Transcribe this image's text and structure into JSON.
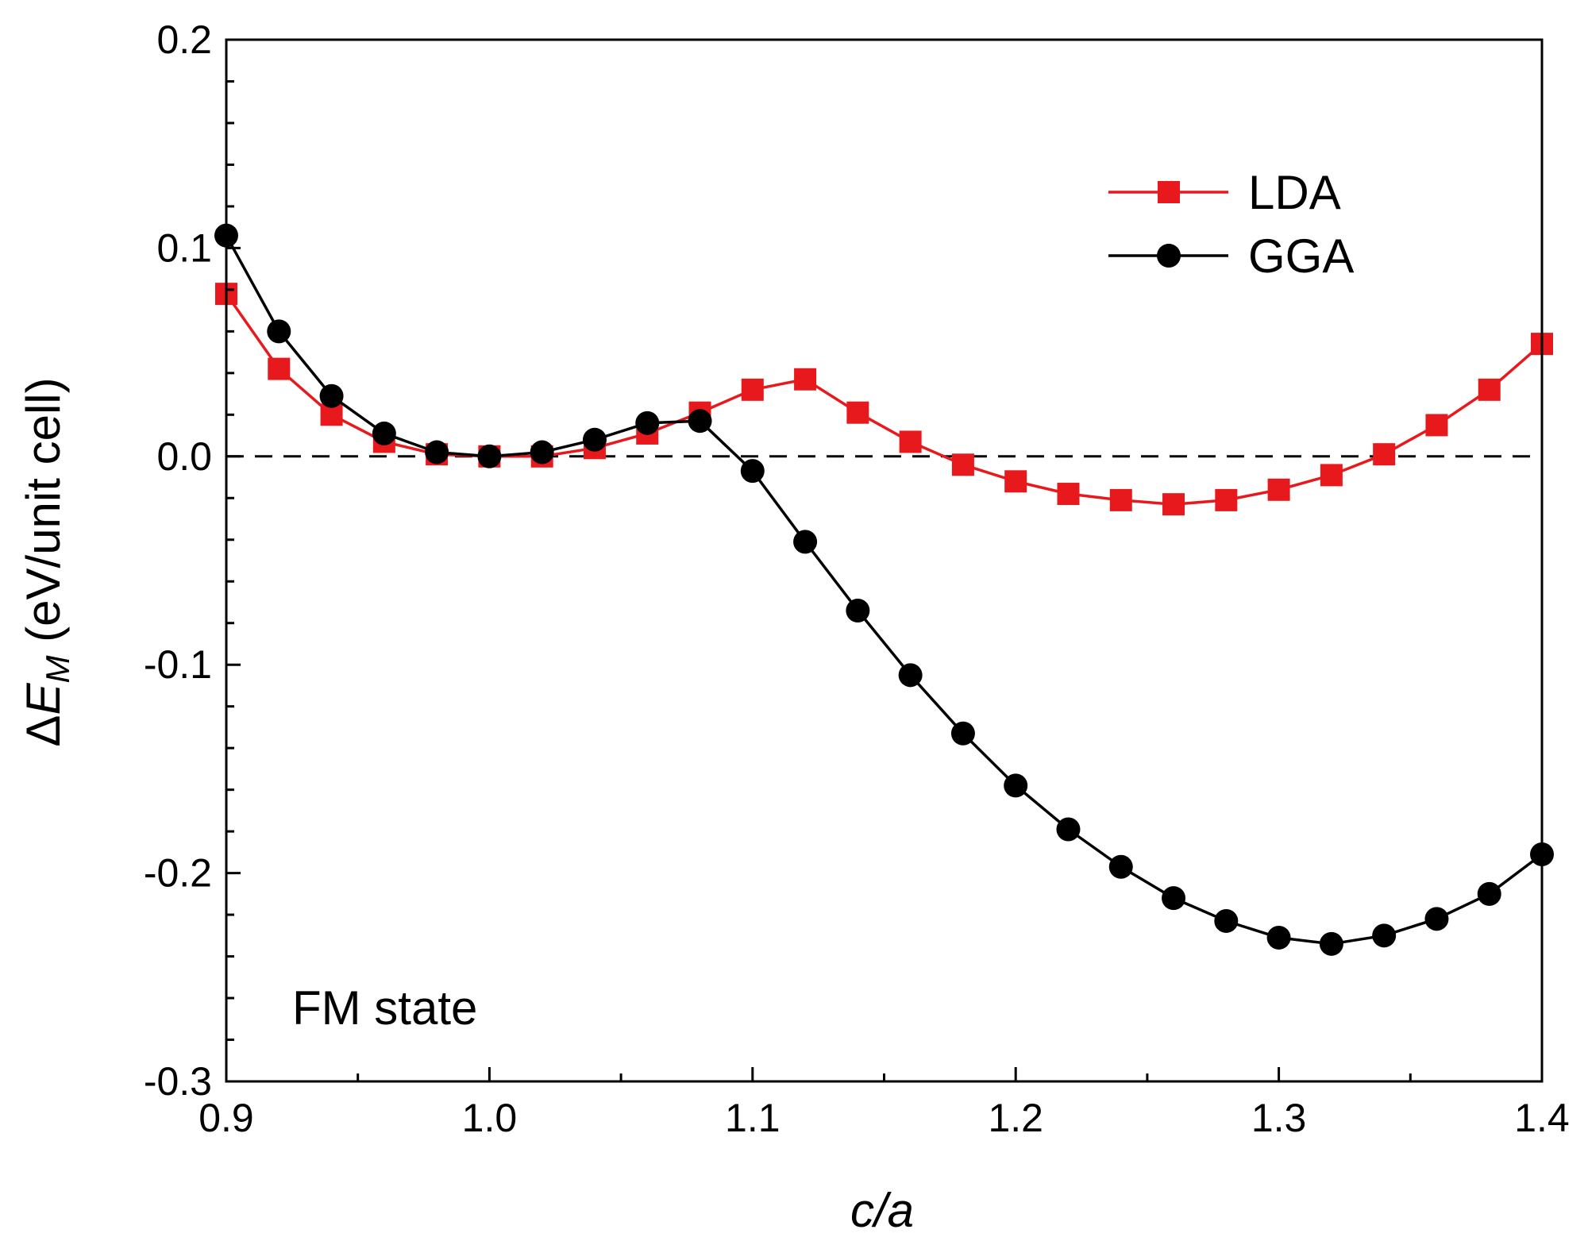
{
  "chart_data": {
    "type": "line",
    "title": "",
    "xlabel": "c/a",
    "ylabel": {
      "delta": "Δ",
      "symbol": "E",
      "subscript": "M",
      "units": " (eV/unit cell)"
    },
    "xlim": [
      0.9,
      1.4
    ],
    "ylim": [
      -0.3,
      0.2
    ],
    "x_ticks": [
      0.9,
      1.0,
      1.1,
      1.2,
      1.3,
      1.4
    ],
    "x_tick_labels": [
      "0.9",
      "1.0",
      "1.1",
      "1.2",
      "1.3",
      "1.4"
    ],
    "x_minor_step": 0.05,
    "y_ticks": [
      -0.3,
      -0.2,
      -0.1,
      0.0,
      0.1,
      0.2
    ],
    "y_tick_labels": [
      "-0.3",
      "-0.2",
      "-0.1",
      "0.0",
      "0.1",
      "0.2"
    ],
    "y_minor_step": 0.02,
    "reference_line": {
      "y": 0.0,
      "style": "dashed"
    },
    "annotation": "FM state",
    "legend_position": "top-right",
    "grid": false,
    "x": [
      0.9,
      0.92,
      0.94,
      0.96,
      0.98,
      1.0,
      1.02,
      1.04,
      1.06,
      1.08,
      1.1,
      1.12,
      1.14,
      1.16,
      1.18,
      1.2,
      1.22,
      1.24,
      1.26,
      1.28,
      1.3,
      1.32,
      1.34,
      1.36,
      1.38,
      1.4
    ],
    "series": [
      {
        "name": "LDA",
        "color": "#e8191c",
        "marker": "square",
        "values": [
          0.078,
          0.042,
          0.02,
          0.007,
          0.001,
          0.0,
          0.0,
          0.004,
          0.011,
          0.021,
          0.032,
          0.037,
          0.021,
          0.007,
          -0.004,
          -0.012,
          -0.018,
          -0.021,
          -0.023,
          -0.021,
          -0.016,
          -0.009,
          0.001,
          0.015,
          0.032,
          0.054
        ]
      },
      {
        "name": "GGA",
        "color": "#000000",
        "marker": "circle",
        "values": [
          0.106,
          0.06,
          0.029,
          0.011,
          0.002,
          0.0,
          0.002,
          0.008,
          0.016,
          0.017,
          -0.007,
          -0.041,
          -0.074,
          -0.105,
          -0.133,
          -0.158,
          -0.179,
          -0.197,
          -0.212,
          -0.223,
          -0.231,
          -0.234,
          -0.23,
          -0.222,
          -0.21,
          -0.191
        ]
      }
    ]
  }
}
